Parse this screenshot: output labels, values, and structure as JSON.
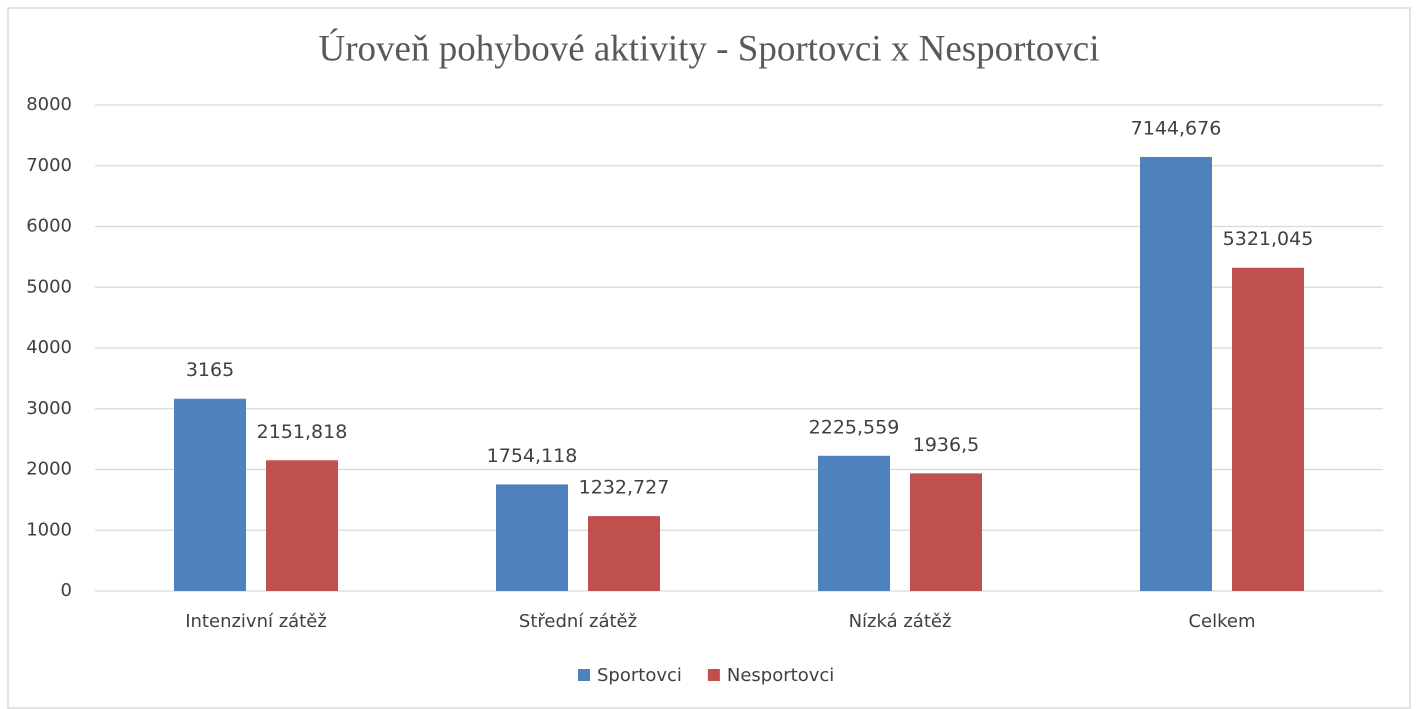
{
  "chart_data": {
    "type": "bar",
    "title": "Úroveň pohybové aktivity - Sportovci x Nesportovci",
    "categories": [
      "Intenzivní zátěž",
      "Střední zátěž",
      "Nízká zátěž",
      "Celkem"
    ],
    "series": [
      {
        "name": "Sportovci",
        "color": "#4f81bd",
        "values": [
          3165,
          1754.118,
          2225.559,
          7144.676
        ],
        "value_labels": [
          "3165",
          "1754,118",
          "2225,559",
          "7144,676"
        ]
      },
      {
        "name": "Nesportovci",
        "color": "#c0504d",
        "values": [
          2151.818,
          1232.727,
          1936.5,
          5321.045
        ],
        "value_labels": [
          "2151,818",
          "1232,727",
          "1936,5",
          "5321,045"
        ]
      }
    ],
    "ylim": [
      0,
      8000
    ],
    "yticks": [
      0,
      1000,
      2000,
      3000,
      4000,
      5000,
      6000,
      7000,
      8000
    ],
    "grid": true,
    "legend": "bottom"
  }
}
